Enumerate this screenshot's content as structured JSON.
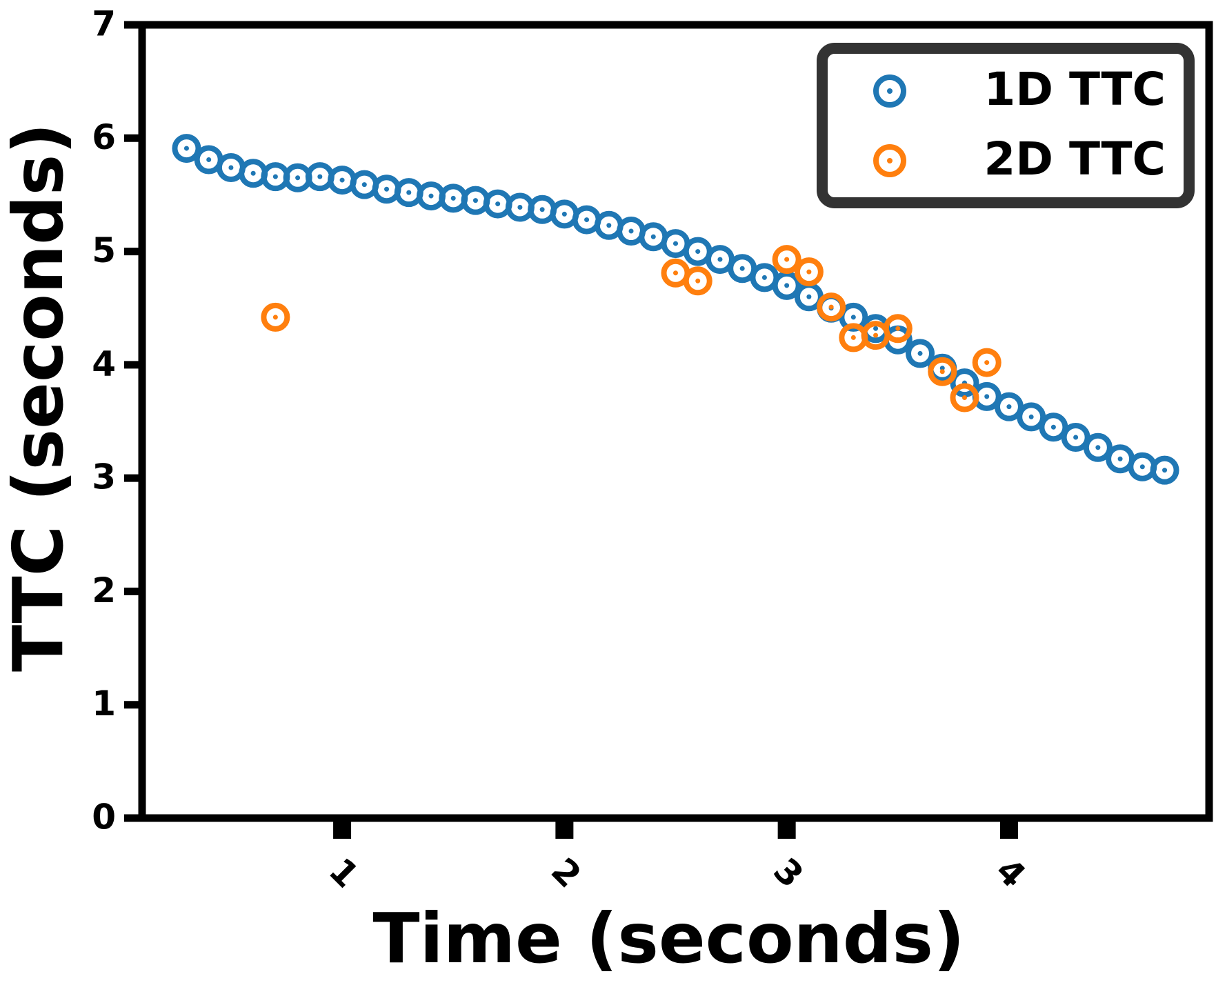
{
  "chart_data": {
    "type": "scatter",
    "title": "",
    "xlabel": "Time (seconds)",
    "ylabel": "TTC (seconds)",
    "xlim": [
      0.1,
      4.9
    ],
    "ylim": [
      0,
      7
    ],
    "xticks": [
      1,
      2,
      3,
      4
    ],
    "xtick_labels": [
      "1",
      "2",
      "3",
      "4"
    ],
    "yticks": [
      0,
      1,
      2,
      3,
      4,
      5,
      6,
      7
    ],
    "ytick_labels": [
      "0",
      "1",
      "2",
      "3",
      "4",
      "5",
      "6",
      "7"
    ],
    "grid": false,
    "legend_position": "top-right",
    "series": [
      {
        "name": "1D TTC",
        "color": "#1f77b4",
        "marker": "circle-open-dotted",
        "x": [
          0.3,
          0.4,
          0.5,
          0.6,
          0.7,
          0.8,
          0.9,
          1.0,
          1.1,
          1.2,
          1.3,
          1.4,
          1.5,
          1.6,
          1.7,
          1.8,
          1.9,
          2.0,
          2.1,
          2.2,
          2.3,
          2.4,
          2.5,
          2.6,
          2.7,
          2.8,
          2.9,
          3.0,
          3.1,
          3.2,
          3.3,
          3.4,
          3.5,
          3.6,
          3.7,
          3.8,
          3.9,
          4.0,
          4.1,
          4.2,
          4.3,
          4.4,
          4.5,
          4.6,
          4.7
        ],
        "y": [
          5.91,
          5.81,
          5.74,
          5.69,
          5.66,
          5.65,
          5.66,
          5.63,
          5.59,
          5.55,
          5.52,
          5.49,
          5.47,
          5.45,
          5.42,
          5.39,
          5.37,
          5.33,
          5.28,
          5.23,
          5.18,
          5.13,
          5.07,
          5.0,
          4.93,
          4.85,
          4.77,
          4.7,
          4.6,
          4.5,
          4.42,
          4.32,
          4.22,
          4.1,
          3.97,
          3.84,
          3.72,
          3.63,
          3.54,
          3.45,
          3.36,
          3.27,
          3.17,
          3.1,
          3.07
        ]
      },
      {
        "name": "2D TTC",
        "color": "#ff7f0e",
        "marker": "circle-open-dotted",
        "x": [
          0.7,
          2.5,
          2.6,
          3.0,
          3.1,
          3.2,
          3.3,
          3.4,
          3.5,
          3.7,
          3.8,
          3.9
        ],
        "y": [
          4.42,
          4.81,
          4.74,
          4.93,
          4.82,
          4.51,
          4.24,
          4.26,
          4.32,
          3.94,
          3.71,
          4.02
        ]
      }
    ]
  }
}
